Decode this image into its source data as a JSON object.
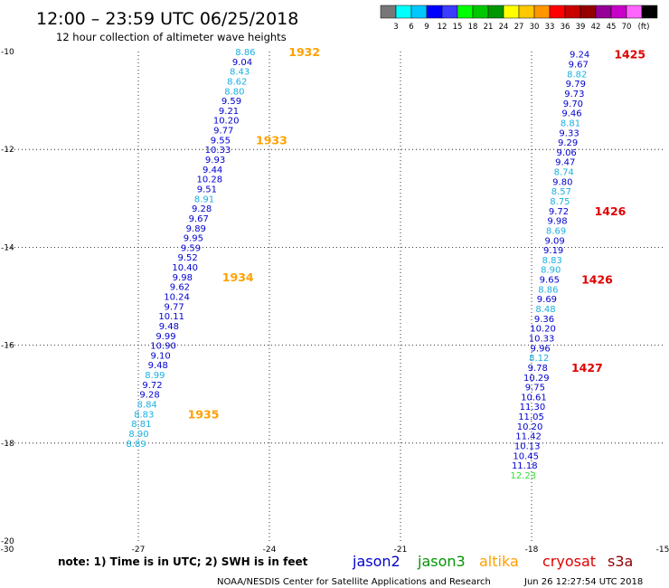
{
  "header": {
    "title": "12:00 – 23:59 UTC 06/25/2018",
    "subtitle": "12 hour collection of altimeter wave heights"
  },
  "legend_scale": {
    "unit": "(ft)",
    "colors": [
      "#777777",
      "#00ffff",
      "#00c8ff",
      "#0000ff",
      "#3c3cff",
      "#00ff00",
      "#00c800",
      "#009600",
      "#ffff00",
      "#ffc800",
      "#ff9600",
      "#ff0000",
      "#c80000",
      "#960000",
      "#960096",
      "#c800c8",
      "#ff64ff",
      "#000000"
    ],
    "labels": [
      "3",
      "6",
      "9",
      "12",
      "15",
      "18",
      "21",
      "24",
      "27",
      "30",
      "33",
      "36",
      "39",
      "42",
      "45",
      "70"
    ]
  },
  "satellites": [
    {
      "name": "jason2",
      "color": "#0000d0"
    },
    {
      "name": "jason3",
      "color": "#009600"
    },
    {
      "name": "altika",
      "color": "#ffa000"
    },
    {
      "name": "cryosat",
      "color": "#e00000"
    },
    {
      "name": "s3a",
      "color": "#900000"
    }
  ],
  "footer": {
    "note": "note:  1) Time is in UTC; 2) SWH is in feet",
    "credit": "NOAA/NESDIS Center for Satellite Applications and Research",
    "timestamp": "Jun 26 12:27:54 UTC 2018"
  },
  "chart_data": {
    "type": "scatter",
    "xlim": [
      -30,
      -15
    ],
    "ylim": [
      -20,
      -10
    ],
    "x_ticks": [
      "-30",
      "-27",
      "-24",
      "-21",
      "-18",
      "-15"
    ],
    "y_ticks": [
      "-10",
      "-12",
      "-14",
      "-16",
      "-18",
      "-20"
    ],
    "grid": true,
    "tracks": [
      {
        "name": "track-west",
        "satellite": "altika",
        "points": [
          {
            "lon": -24.55,
            "lat": -10.0,
            "v": "8.86",
            "c": "#1ab0e0"
          },
          {
            "lon": -24.62,
            "lat": -10.2,
            "v": "9.04",
            "c": "#0000d0"
          },
          {
            "lon": -24.68,
            "lat": -10.4,
            "v": "8.43",
            "c": "#1ab0e0"
          },
          {
            "lon": -24.74,
            "lat": -10.6,
            "v": "8.62",
            "c": "#1ab0e0"
          },
          {
            "lon": -24.8,
            "lat": -10.8,
            "v": "8.80",
            "c": "#1ab0e0"
          },
          {
            "lon": -24.87,
            "lat": -11.0,
            "v": "9.59",
            "c": "#0000d0"
          },
          {
            "lon": -24.93,
            "lat": -11.2,
            "v": "9.21",
            "c": "#0000d0"
          },
          {
            "lon": -24.99,
            "lat": -11.4,
            "v": "10.20",
            "c": "#0000d0"
          },
          {
            "lon": -25.05,
            "lat": -11.6,
            "v": "9.77",
            "c": "#0000d0"
          },
          {
            "lon": -25.12,
            "lat": -11.8,
            "v": "9.55",
            "c": "#0000d0"
          },
          {
            "lon": -25.18,
            "lat": -12.0,
            "v": "10.33",
            "c": "#0000d0"
          },
          {
            "lon": -25.24,
            "lat": -12.2,
            "v": "9.93",
            "c": "#0000d0"
          },
          {
            "lon": -25.3,
            "lat": -12.4,
            "v": "9.44",
            "c": "#0000d0"
          },
          {
            "lon": -25.37,
            "lat": -12.6,
            "v": "10.28",
            "c": "#0000d0"
          },
          {
            "lon": -25.43,
            "lat": -12.8,
            "v": "9.51",
            "c": "#0000d0"
          },
          {
            "lon": -25.49,
            "lat": -13.0,
            "v": "8.91",
            "c": "#1ab0e0"
          },
          {
            "lon": -25.55,
            "lat": -13.2,
            "v": "9.28",
            "c": "#0000d0"
          },
          {
            "lon": -25.62,
            "lat": -13.4,
            "v": "9.67",
            "c": "#0000d0"
          },
          {
            "lon": -25.68,
            "lat": -13.6,
            "v": "9.89",
            "c": "#0000d0"
          },
          {
            "lon": -25.74,
            "lat": -13.8,
            "v": "9.95",
            "c": "#0000d0"
          },
          {
            "lon": -25.8,
            "lat": -14.0,
            "v": "9.59",
            "c": "#0000d0"
          },
          {
            "lon": -25.87,
            "lat": -14.2,
            "v": "9.52",
            "c": "#0000d0"
          },
          {
            "lon": -25.93,
            "lat": -14.4,
            "v": "10.40",
            "c": "#0000d0"
          },
          {
            "lon": -25.99,
            "lat": -14.6,
            "v": "9.98",
            "c": "#0000d0"
          },
          {
            "lon": -26.05,
            "lat": -14.8,
            "v": "9.62",
            "c": "#0000d0"
          },
          {
            "lon": -26.12,
            "lat": -15.0,
            "v": "10.24",
            "c": "#0000d0"
          },
          {
            "lon": -26.18,
            "lat": -15.2,
            "v": "9.77",
            "c": "#0000d0"
          },
          {
            "lon": -26.24,
            "lat": -15.4,
            "v": "10.11",
            "c": "#0000d0"
          },
          {
            "lon": -26.3,
            "lat": -15.6,
            "v": "9.48",
            "c": "#0000d0"
          },
          {
            "lon": -26.37,
            "lat": -15.8,
            "v": "9.99",
            "c": "#0000d0"
          },
          {
            "lon": -26.43,
            "lat": -16.0,
            "v": "10.90",
            "c": "#0000d0"
          },
          {
            "lon": -26.49,
            "lat": -16.2,
            "v": "9.10",
            "c": "#0000d0"
          },
          {
            "lon": -26.55,
            "lat": -16.4,
            "v": "9.48",
            "c": "#0000d0"
          },
          {
            "lon": -26.62,
            "lat": -16.6,
            "v": "8.99",
            "c": "#1ab0e0"
          },
          {
            "lon": -26.68,
            "lat": -16.8,
            "v": "9.72",
            "c": "#0000d0"
          },
          {
            "lon": -26.74,
            "lat": -17.0,
            "v": "9.28",
            "c": "#0000d0"
          },
          {
            "lon": -26.8,
            "lat": -17.2,
            "v": "8.84",
            "c": "#1ab0e0"
          },
          {
            "lon": -26.87,
            "lat": -17.4,
            "v": "8.83",
            "c": "#1ab0e0"
          },
          {
            "lon": -26.93,
            "lat": -17.6,
            "v": "8.81",
            "c": "#1ab0e0"
          },
          {
            "lon": -26.99,
            "lat": -17.8,
            "v": "8.90",
            "c": "#1ab0e0"
          },
          {
            "lon": -27.05,
            "lat": -18.0,
            "v": "8.89",
            "c": "#1ab0e0"
          }
        ],
        "time_labels": [
          {
            "lon": -23.2,
            "lat": -10.0,
            "t": "1932"
          },
          {
            "lon": -23.95,
            "lat": -11.8,
            "t": "1933"
          },
          {
            "lon": -24.72,
            "lat": -14.6,
            "t": "1934"
          },
          {
            "lon": -25.51,
            "lat": -17.4,
            "t": "1935"
          }
        ],
        "time_color": "#ffa000"
      },
      {
        "name": "track-east",
        "satellite": "cryosat",
        "points": [
          {
            "lon": -16.9,
            "lat": -10.05,
            "v": "9.24",
            "c": "#0000d0"
          },
          {
            "lon": -16.93,
            "lat": -10.25,
            "v": "9.67",
            "c": "#0000d0"
          },
          {
            "lon": -16.96,
            "lat": -10.45,
            "v": "8.82",
            "c": "#1ab0e0"
          },
          {
            "lon": -16.99,
            "lat": -10.65,
            "v": "9.79",
            "c": "#0000d0"
          },
          {
            "lon": -17.02,
            "lat": -10.85,
            "v": "9.73",
            "c": "#0000d0"
          },
          {
            "lon": -17.05,
            "lat": -11.05,
            "v": "9.70",
            "c": "#0000d0"
          },
          {
            "lon": -17.08,
            "lat": -11.25,
            "v": "9.46",
            "c": "#0000d0"
          },
          {
            "lon": -17.11,
            "lat": -11.45,
            "v": "8.81",
            "c": "#1ab0e0"
          },
          {
            "lon": -17.14,
            "lat": -11.65,
            "v": "9.33",
            "c": "#0000d0"
          },
          {
            "lon": -17.17,
            "lat": -11.85,
            "v": "9.29",
            "c": "#0000d0"
          },
          {
            "lon": -17.2,
            "lat": -12.05,
            "v": "9.06",
            "c": "#0000d0"
          },
          {
            "lon": -17.23,
            "lat": -12.25,
            "v": "9.47",
            "c": "#0000d0"
          },
          {
            "lon": -17.26,
            "lat": -12.45,
            "v": "8.74",
            "c": "#1ab0e0"
          },
          {
            "lon": -17.29,
            "lat": -12.65,
            "v": "9.80",
            "c": "#0000d0"
          },
          {
            "lon": -17.32,
            "lat": -12.85,
            "v": "8.57",
            "c": "#1ab0e0"
          },
          {
            "lon": -17.35,
            "lat": -13.05,
            "v": "8.75",
            "c": "#1ab0e0"
          },
          {
            "lon": -17.38,
            "lat": -13.25,
            "v": "9.72",
            "c": "#0000d0"
          },
          {
            "lon": -17.41,
            "lat": -13.45,
            "v": "9.98",
            "c": "#0000d0"
          },
          {
            "lon": -17.44,
            "lat": -13.65,
            "v": "8.69",
            "c": "#1ab0e0"
          },
          {
            "lon": -17.47,
            "lat": -13.85,
            "v": "9.09",
            "c": "#0000d0"
          },
          {
            "lon": -17.5,
            "lat": -14.05,
            "v": "9.19",
            "c": "#0000d0"
          },
          {
            "lon": -17.53,
            "lat": -14.25,
            "v": "8.83",
            "c": "#1ab0e0"
          },
          {
            "lon": -17.56,
            "lat": -14.45,
            "v": "8.90",
            "c": "#1ab0e0"
          },
          {
            "lon": -17.59,
            "lat": -14.65,
            "v": "9.65",
            "c": "#0000d0"
          },
          {
            "lon": -17.62,
            "lat": -14.85,
            "v": "8.86",
            "c": "#1ab0e0"
          },
          {
            "lon": -17.65,
            "lat": -15.05,
            "v": "9.69",
            "c": "#0000d0"
          },
          {
            "lon": -17.68,
            "lat": -15.25,
            "v": "8.48",
            "c": "#1ab0e0"
          },
          {
            "lon": -17.71,
            "lat": -15.45,
            "v": "9.36",
            "c": "#0000d0"
          },
          {
            "lon": -17.74,
            "lat": -15.65,
            "v": "10.20",
            "c": "#0000d0"
          },
          {
            "lon": -17.77,
            "lat": -15.85,
            "v": "10.33",
            "c": "#0000d0"
          },
          {
            "lon": -17.8,
            "lat": -16.05,
            "v": "9.96",
            "c": "#0000d0"
          },
          {
            "lon": -17.83,
            "lat": -16.25,
            "v": "8.12",
            "c": "#1ab0e0"
          },
          {
            "lon": -17.86,
            "lat": -16.45,
            "v": "9.78",
            "c": "#0000d0"
          },
          {
            "lon": -17.89,
            "lat": -16.65,
            "v": "10.29",
            "c": "#0000d0"
          },
          {
            "lon": -17.92,
            "lat": -16.85,
            "v": "9.75",
            "c": "#0000d0"
          },
          {
            "lon": -17.95,
            "lat": -17.05,
            "v": "10.61",
            "c": "#0000d0"
          },
          {
            "lon": -17.98,
            "lat": -17.25,
            "v": "11.30",
            "c": "#0000d0"
          },
          {
            "lon": -18.01,
            "lat": -17.45,
            "v": "11.05",
            "c": "#0000d0"
          },
          {
            "lon": -18.04,
            "lat": -17.65,
            "v": "10.20",
            "c": "#0000d0"
          },
          {
            "lon": -18.07,
            "lat": -17.85,
            "v": "11.42",
            "c": "#0000d0"
          },
          {
            "lon": -18.1,
            "lat": -18.05,
            "v": "10.13",
            "c": "#0000d0"
          },
          {
            "lon": -18.13,
            "lat": -18.25,
            "v": "10.45",
            "c": "#0000d0"
          },
          {
            "lon": -18.16,
            "lat": -18.45,
            "v": "11.18",
            "c": "#0000d0"
          },
          {
            "lon": -18.19,
            "lat": -18.65,
            "v": "12.23",
            "c": "#33dd33"
          }
        ],
        "time_labels": [
          {
            "lon": -15.75,
            "lat": -10.05,
            "t": "1425"
          },
          {
            "lon": -16.2,
            "lat": -13.25,
            "t": "1426"
          },
          {
            "lon": -16.5,
            "lat": -14.65,
            "t": "1426"
          },
          {
            "lon": -16.73,
            "lat": -16.45,
            "t": "1427"
          }
        ],
        "time_color": "#e00000"
      }
    ]
  }
}
